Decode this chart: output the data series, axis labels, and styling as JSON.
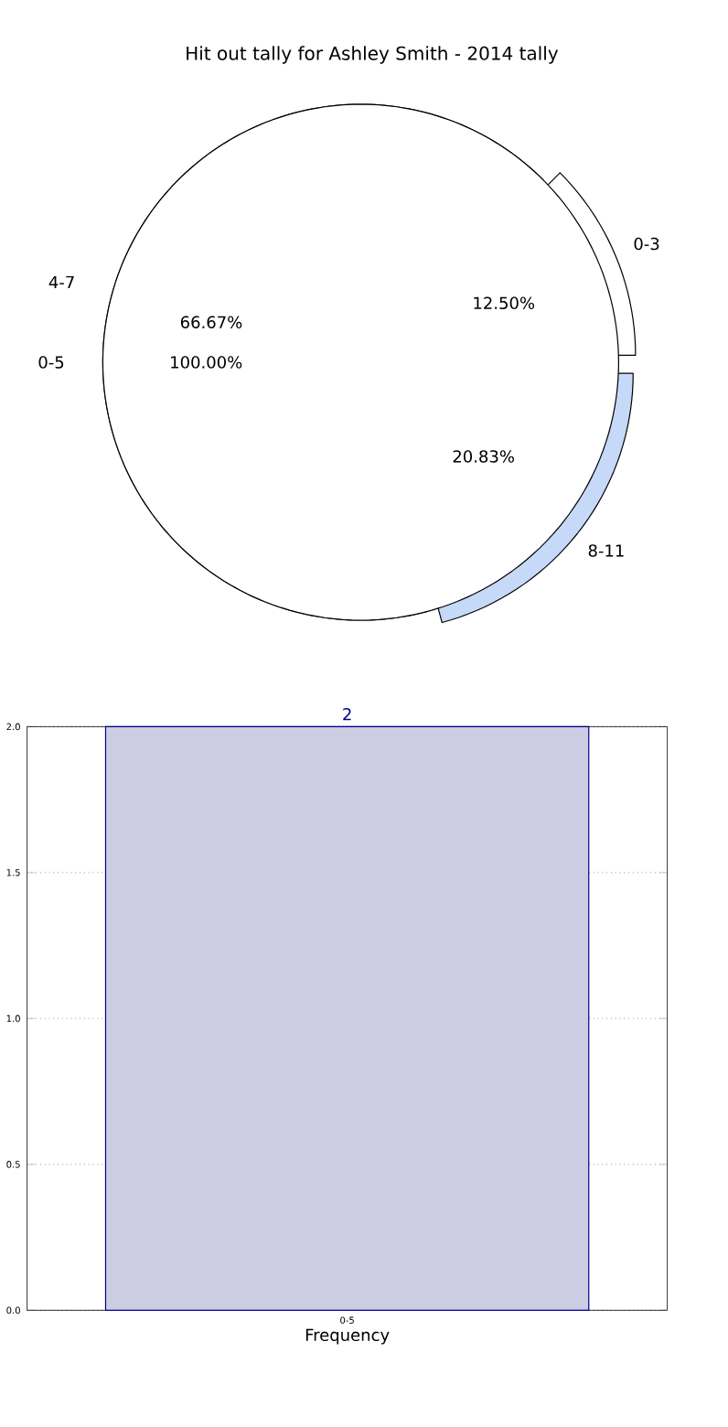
{
  "chart_data": [
    {
      "type": "pie",
      "title": "Hit out tally for Ashley Smith - 2014 tally",
      "categories": [
        "0-3",
        "4-7",
        "8-11"
      ],
      "values": [
        12.5,
        66.67,
        20.83
      ],
      "colors": [
        "#ffffff",
        "#ffffff",
        "#c6d9f8"
      ],
      "value_labels": [
        "12.50%",
        "66.67%",
        "20.83%"
      ]
    },
    {
      "type": "pie",
      "categories": [
        "0-5"
      ],
      "values": [
        100
      ],
      "colors": [
        "#ffffff"
      ],
      "value_labels": [
        "100.00%"
      ]
    },
    {
      "type": "bar",
      "categories": [
        "0-5"
      ],
      "values": [
        2
      ],
      "color": "#cccce3",
      "xlabel": "Frequency",
      "ylim": [
        0,
        2
      ],
      "yticks": [
        {
          "value": 0,
          "label": "0.0"
        },
        {
          "value": 0.5,
          "label": "0.5"
        },
        {
          "value": 1,
          "label": "1.0"
        },
        {
          "value": 1.5,
          "label": "1.5"
        },
        {
          "value": 2,
          "label": "2.0"
        }
      ],
      "grid": true,
      "value_labels": [
        "2"
      ]
    }
  ]
}
